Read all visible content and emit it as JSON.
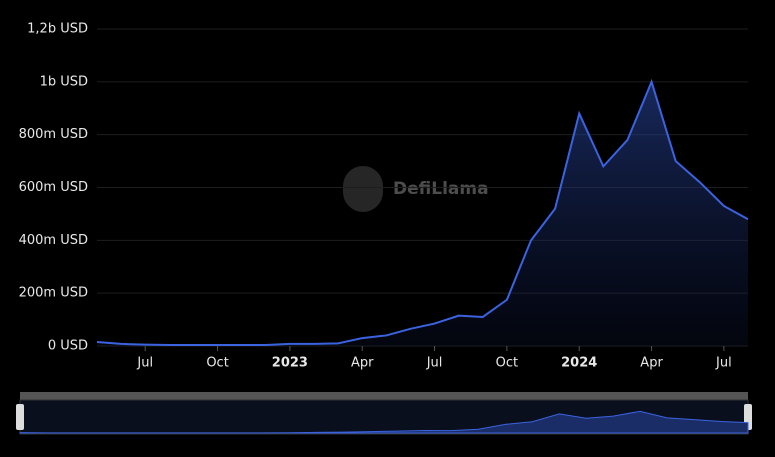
{
  "chart_data": {
    "type": "area",
    "watermark": "DefiLlama",
    "x": [
      "2022-05",
      "2022-06",
      "2022-07",
      "2022-08",
      "2022-09",
      "2022-10",
      "2022-11",
      "2022-12",
      "2023-01",
      "2023-02",
      "2023-03",
      "2023-04",
      "2023-05",
      "2023-06",
      "2023-07",
      "2023-08",
      "2023-09",
      "2023-10",
      "2023-11",
      "2023-12",
      "2024-01",
      "2024-02",
      "2024-03",
      "2024-04",
      "2024-05",
      "2024-06",
      "2024-07",
      "2024-08"
    ],
    "series": [
      {
        "color": "#3b63e0",
        "values": [
          15000000,
          8000000,
          5000000,
          4000000,
          4000000,
          4000000,
          4000000,
          4000000,
          8000000,
          8000000,
          10000000,
          30000000,
          40000000,
          65000000,
          85000000,
          115000000,
          110000000,
          175000000,
          400000000,
          520000000,
          880000000,
          680000000,
          780000000,
          1000000000,
          700000000,
          620000000,
          530000000,
          480000000
        ]
      }
    ],
    "xlim": [
      "2022-05",
      "2024-08"
    ],
    "xticks": [
      {
        "value": "2022-07",
        "label": "Jul"
      },
      {
        "value": "2022-10",
        "label": "Oct"
      },
      {
        "value": "2023-01",
        "label": "2023"
      },
      {
        "value": "2023-04",
        "label": "Apr"
      },
      {
        "value": "2023-07",
        "label": "Jul"
      },
      {
        "value": "2023-10",
        "label": "Oct"
      },
      {
        "value": "2024-01",
        "label": "2024"
      },
      {
        "value": "2024-04",
        "label": "Apr"
      },
      {
        "value": "2024-07",
        "label": "Jul"
      }
    ],
    "ylim": [
      0,
      1200000000
    ],
    "yticks": [
      {
        "value": 0,
        "label": "0 USD"
      },
      {
        "value": 200000000,
        "label": "200m USD"
      },
      {
        "value": 400000000,
        "label": "400m USD"
      },
      {
        "value": 600000000,
        "label": "600m USD"
      },
      {
        "value": 800000000,
        "label": "800m USD"
      },
      {
        "value": 1000000000,
        "label": "1b USD"
      },
      {
        "value": 1200000000,
        "label": "1,2b USD"
      }
    ],
    "grid": true
  }
}
